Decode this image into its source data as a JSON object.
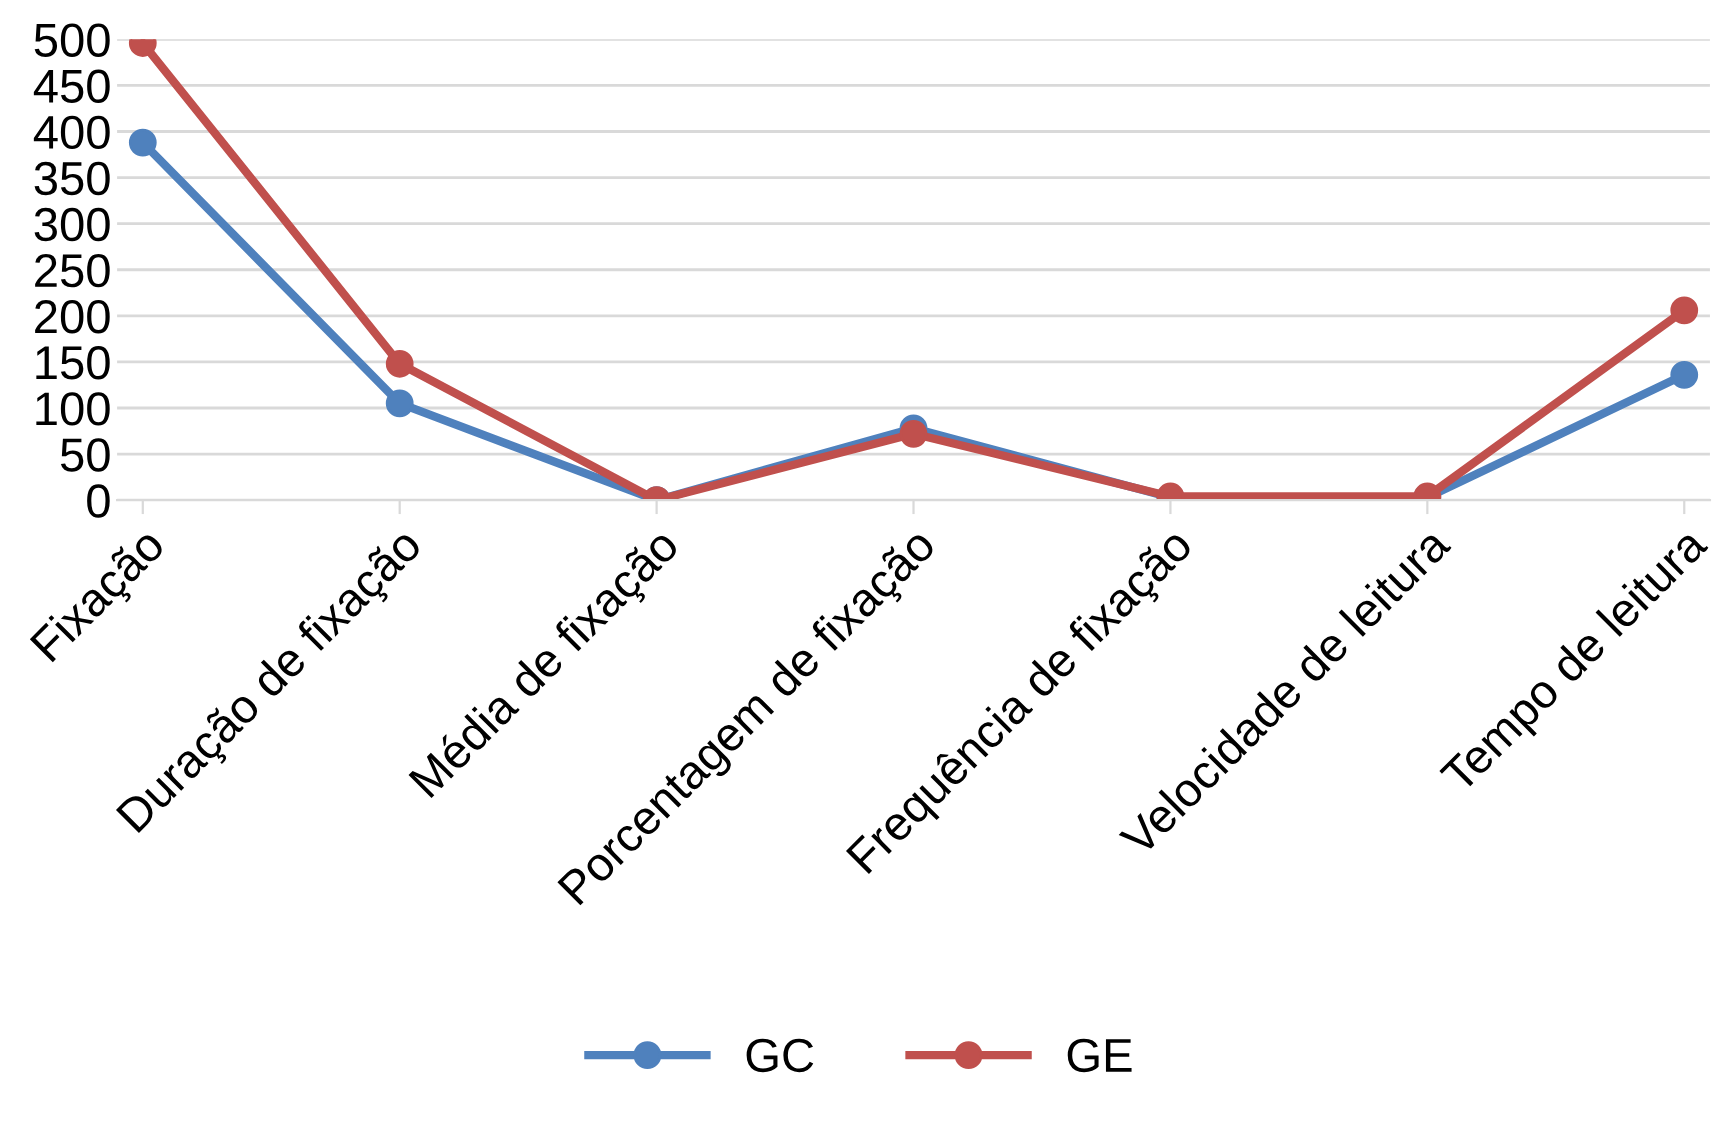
{
  "chart_data": {
    "type": "line",
    "categories": [
      "Fixação",
      "Duração de fixação",
      "Média de fixação",
      "Porcentagem de fixação",
      "Frequência de fixação",
      "Velocidade de leitura",
      "Tempo de leitura"
    ],
    "series": [
      {
        "name": "GC",
        "color": "#4f81bd",
        "values": [
          388,
          105,
          0,
          78,
          3,
          3,
          136
        ]
      },
      {
        "name": "GE",
        "color": "#c0504d",
        "values": [
          496,
          148,
          0,
          72,
          4,
          4,
          206
        ]
      }
    ],
    "ylim": [
      0,
      500
    ],
    "yticks": [
      0,
      50,
      100,
      150,
      200,
      250,
      300,
      350,
      400,
      450,
      500
    ],
    "grid": "y",
    "legend": "bottom",
    "marker": "circle",
    "line_style": "solid"
  }
}
